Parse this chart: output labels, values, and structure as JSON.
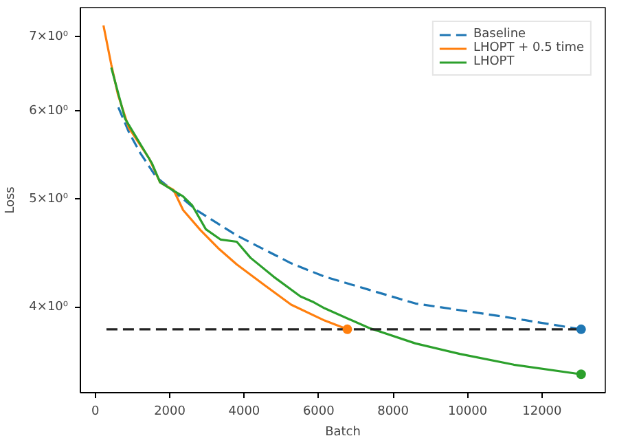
{
  "chart_data": {
    "type": "line",
    "xlabel": "Batch",
    "ylabel": "Loss",
    "log": "y",
    "grid": false,
    "legend": "top right",
    "xlim": [
      -400,
      13700
    ],
    "xticks": [
      0,
      2000,
      4000,
      6000,
      8000,
      10000,
      12000
    ],
    "ylim": [
      3.35,
      7.44
    ],
    "yticks": [
      {
        "value": 4,
        "label": "4×10⁰"
      },
      {
        "value": 5,
        "label": "5×10⁰"
      },
      {
        "value": 6,
        "label": "6×10⁰"
      },
      {
        "value": 7,
        "label": "7×10⁰"
      }
    ],
    "series": [
      {
        "name": "Baseline",
        "color": "#1f77b4",
        "line_style": "dashed",
        "x": [
          620,
          900,
          1200,
          1630,
          2720,
          3800,
          5260,
          6160,
          8600,
          10990,
          13050
        ],
        "values": [
          6.05,
          5.75,
          5.51,
          5.24,
          4.89,
          4.64,
          4.38,
          4.26,
          4.03,
          3.92,
          3.82
        ]
      },
      {
        "name": "LHOPT + 0.5 time",
        "color": "#ff7f0e",
        "x": [
          220,
          430,
          610,
          900,
          1450,
          1740,
          2100,
          2360,
          2830,
          3330,
          3800,
          4530,
          5260,
          6160,
          6770
        ],
        "values": [
          7.17,
          6.61,
          6.21,
          5.8,
          5.44,
          5.18,
          5.1,
          4.89,
          4.69,
          4.51,
          4.37,
          4.19,
          4.02,
          3.89,
          3.82
        ]
      },
      {
        "name": "LHOPT",
        "color": "#2ca02c",
        "x": [
          430,
          800,
          1520,
          1740,
          2360,
          2600,
          2970,
          3370,
          3800,
          4170,
          4790,
          5510,
          5870,
          6160,
          7360,
          8600,
          9790,
          11240,
          13050
        ],
        "values": [
          6.57,
          5.91,
          5.39,
          5.18,
          5.03,
          4.94,
          4.7,
          4.6,
          4.58,
          4.43,
          4.26,
          4.09,
          4.04,
          3.99,
          3.83,
          3.71,
          3.63,
          3.55,
          3.48
        ]
      },
      {
        "color": "#222222",
        "line_style": "dashed",
        "x": [
          300,
          13050
        ],
        "values": [
          3.82,
          3.82
        ]
      },
      {
        "type": "scatter",
        "color": "#1f77b4",
        "x": [
          13050
        ],
        "values": [
          3.82
        ]
      },
      {
        "type": "scatter",
        "color": "#ff7f0e",
        "x": [
          6770
        ],
        "values": [
          3.82
        ]
      },
      {
        "type": "scatter",
        "color": "#2ca02c",
        "x": [
          13050
        ],
        "values": [
          3.48
        ]
      }
    ]
  }
}
